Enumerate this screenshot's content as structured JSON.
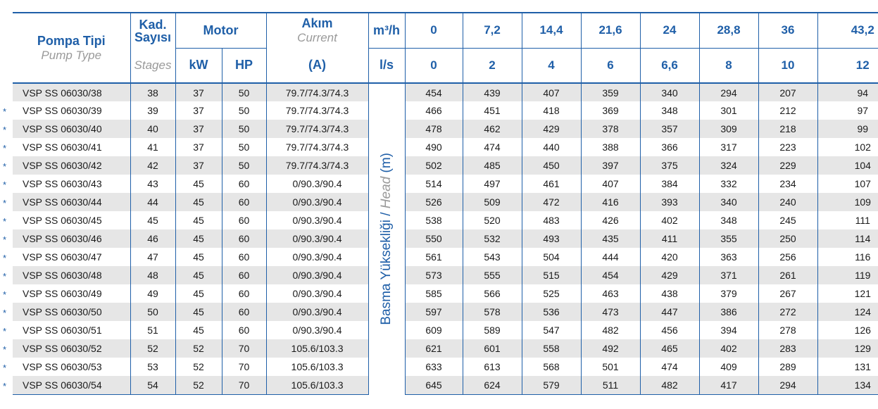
{
  "header": {
    "pump_type_tr": "Pompa Tipi",
    "pump_type_en": "Pump Type",
    "stages_tr_1": "Kad.",
    "stages_tr_2": "Sayısı",
    "stages_en": "Stages",
    "motor": "Motor",
    "kw": "kW",
    "hp": "HP",
    "current_tr": "Akım",
    "current_en": "Current",
    "current_unit": "(A)",
    "flow_unit_m3h": "m³/h",
    "flow_unit_ls": "l/s",
    "flow_m3h": [
      "0",
      "7,2",
      "14,4",
      "21,6",
      "24",
      "28,8",
      "36",
      "43,2"
    ],
    "flow_ls": [
      "0",
      "2",
      "4",
      "6",
      "6,6",
      "8",
      "10",
      "12"
    ]
  },
  "head_label_tr": "Basma Yüksekliği / ",
  "head_label_en": "Head",
  "head_label_unit": " (m)",
  "star_symbol": "*",
  "rows": [
    {
      "star": false,
      "model": "VSP SS 06030/38",
      "stages": "38",
      "kw": "37",
      "hp": "50",
      "current": "79.7/74.3/74.3",
      "heads": [
        "454",
        "439",
        "407",
        "359",
        "340",
        "294",
        "207",
        "94"
      ]
    },
    {
      "star": true,
      "model": "VSP SS 06030/39",
      "stages": "39",
      "kw": "37",
      "hp": "50",
      "current": "79.7/74.3/74.3",
      "heads": [
        "466",
        "451",
        "418",
        "369",
        "348",
        "301",
        "212",
        "97"
      ]
    },
    {
      "star": true,
      "model": "VSP SS 06030/40",
      "stages": "40",
      "kw": "37",
      "hp": "50",
      "current": "79.7/74.3/74.3",
      "heads": [
        "478",
        "462",
        "429",
        "378",
        "357",
        "309",
        "218",
        "99"
      ]
    },
    {
      "star": true,
      "model": "VSP SS 06030/41",
      "stages": "41",
      "kw": "37",
      "hp": "50",
      "current": "79.7/74.3/74.3",
      "heads": [
        "490",
        "474",
        "440",
        "388",
        "366",
        "317",
        "223",
        "102"
      ]
    },
    {
      "star": true,
      "model": "VSP SS 06030/42",
      "stages": "42",
      "kw": "37",
      "hp": "50",
      "current": "79.7/74.3/74.3",
      "heads": [
        "502",
        "485",
        "450",
        "397",
        "375",
        "324",
        "229",
        "104"
      ]
    },
    {
      "star": true,
      "model": "VSP SS 06030/43",
      "stages": "43",
      "kw": "45",
      "hp": "60",
      "current": "0/90.3/90.4",
      "heads": [
        "514",
        "497",
        "461",
        "407",
        "384",
        "332",
        "234",
        "107"
      ]
    },
    {
      "star": true,
      "model": "VSP SS 06030/44",
      "stages": "44",
      "kw": "45",
      "hp": "60",
      "current": "0/90.3/90.4",
      "heads": [
        "526",
        "509",
        "472",
        "416",
        "393",
        "340",
        "240",
        "109"
      ]
    },
    {
      "star": true,
      "model": "VSP SS 06030/45",
      "stages": "45",
      "kw": "45",
      "hp": "60",
      "current": "0/90.3/90.4",
      "heads": [
        "538",
        "520",
        "483",
        "426",
        "402",
        "348",
        "245",
        "111"
      ]
    },
    {
      "star": true,
      "model": "VSP SS 06030/46",
      "stages": "46",
      "kw": "45",
      "hp": "60",
      "current": "0/90.3/90.4",
      "heads": [
        "550",
        "532",
        "493",
        "435",
        "411",
        "355",
        "250",
        "114"
      ]
    },
    {
      "star": true,
      "model": "VSP SS 06030/47",
      "stages": "47",
      "kw": "45",
      "hp": "60",
      "current": "0/90.3/90.4",
      "heads": [
        "561",
        "543",
        "504",
        "444",
        "420",
        "363",
        "256",
        "116"
      ]
    },
    {
      "star": true,
      "model": "VSP SS 06030/48",
      "stages": "48",
      "kw": "45",
      "hp": "60",
      "current": "0/90.3/90.4",
      "heads": [
        "573",
        "555",
        "515",
        "454",
        "429",
        "371",
        "261",
        "119"
      ]
    },
    {
      "star": true,
      "model": "VSP SS 06030/49",
      "stages": "49",
      "kw": "45",
      "hp": "60",
      "current": "0/90.3/90.4",
      "heads": [
        "585",
        "566",
        "525",
        "463",
        "438",
        "379",
        "267",
        "121"
      ]
    },
    {
      "star": true,
      "model": "VSP SS 06030/50",
      "stages": "50",
      "kw": "45",
      "hp": "60",
      "current": "0/90.3/90.4",
      "heads": [
        "597",
        "578",
        "536",
        "473",
        "447",
        "386",
        "272",
        "124"
      ]
    },
    {
      "star": true,
      "model": "VSP SS 06030/51",
      "stages": "51",
      "kw": "45",
      "hp": "60",
      "current": "0/90.3/90.4",
      "heads": [
        "609",
        "589",
        "547",
        "482",
        "456",
        "394",
        "278",
        "126"
      ]
    },
    {
      "star": true,
      "model": "VSP SS 06030/52",
      "stages": "52",
      "kw": "52",
      "hp": "70",
      "current": "105.6/103.3",
      "heads": [
        "621",
        "601",
        "558",
        "492",
        "465",
        "402",
        "283",
        "129"
      ]
    },
    {
      "star": true,
      "model": "VSP SS 06030/53",
      "stages": "53",
      "kw": "52",
      "hp": "70",
      "current": "105.6/103.3",
      "heads": [
        "633",
        "613",
        "568",
        "501",
        "474",
        "409",
        "289",
        "131"
      ]
    },
    {
      "star": true,
      "model": "VSP SS 06030/54",
      "stages": "54",
      "kw": "52",
      "hp": "70",
      "current": "105.6/103.3",
      "heads": [
        "645",
        "624",
        "579",
        "511",
        "482",
        "417",
        "294",
        "134"
      ]
    }
  ],
  "colors": {
    "accent": "#1f5fa8",
    "row_shade": "#e6e6e6",
    "subtitle_gray": "#9a9a9a"
  }
}
